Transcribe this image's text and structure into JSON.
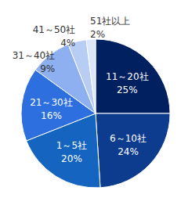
{
  "chart_data": {
    "type": "pie",
    "categories": [
      "11～20社",
      "6～10社",
      "1～5社",
      "21～30社",
      "31～40社",
      "41～50社",
      "51社以上"
    ],
    "values": [
      25,
      24,
      20,
      16,
      9,
      4,
      2
    ],
    "value_labels": [
      "25%",
      "24%",
      "20%",
      "16%",
      "9%",
      "4%",
      "2%"
    ],
    "colors": [
      "#002060",
      "#0d3b8e",
      "#1464c0",
      "#2e6fe0",
      "#8eaff0",
      "#b8cdf4",
      "#dbe6f9"
    ],
    "data_labels": true
  }
}
